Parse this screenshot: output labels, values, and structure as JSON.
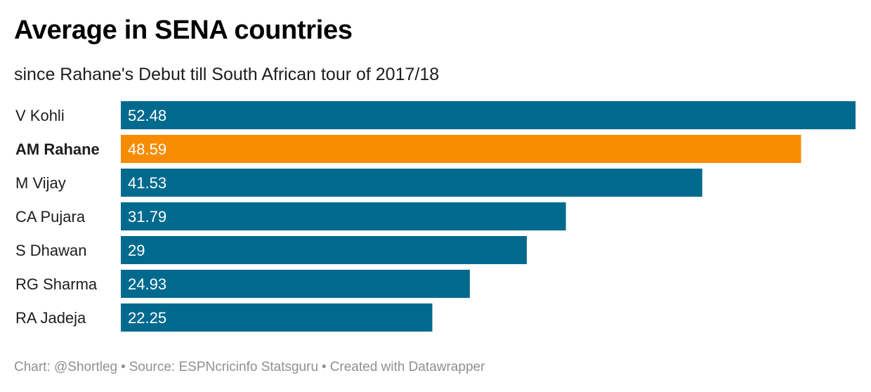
{
  "header": {
    "title": "Average in SENA countries",
    "subtitle": "since Rahane's Debut till South African tour of 2017/18"
  },
  "footer": {
    "chart_credit": "Chart: @Shortleg",
    "source": "Source: ESPNcricinfo Statsguru",
    "tool": "Created with Datawrapper",
    "separator": "•"
  },
  "colors": {
    "default_bar": "#006a8e",
    "highlight_bar": "#f88c00",
    "value_label": "#ffffff",
    "category_label": "#1d1d1d"
  },
  "chart_data": {
    "type": "bar",
    "orientation": "horizontal",
    "title": "Average in SENA countries",
    "subtitle": "since Rahane's Debut till South African tour of 2017/18",
    "categories": [
      "V Kohli",
      "AM Rahane",
      "M Vijay",
      "CA Pujara",
      "S Dhawan",
      "RG Sharma",
      "RA Jadeja"
    ],
    "values": [
      52.48,
      48.59,
      41.53,
      31.79,
      29,
      24.93,
      22.25
    ],
    "value_labels": [
      "52.48",
      "48.59",
      "41.53",
      "31.79",
      "29",
      "24.93",
      "22.25"
    ],
    "highlighted": [
      "AM Rahane"
    ],
    "xlim": [
      0,
      52.48
    ],
    "grid": false,
    "legend": "none"
  }
}
